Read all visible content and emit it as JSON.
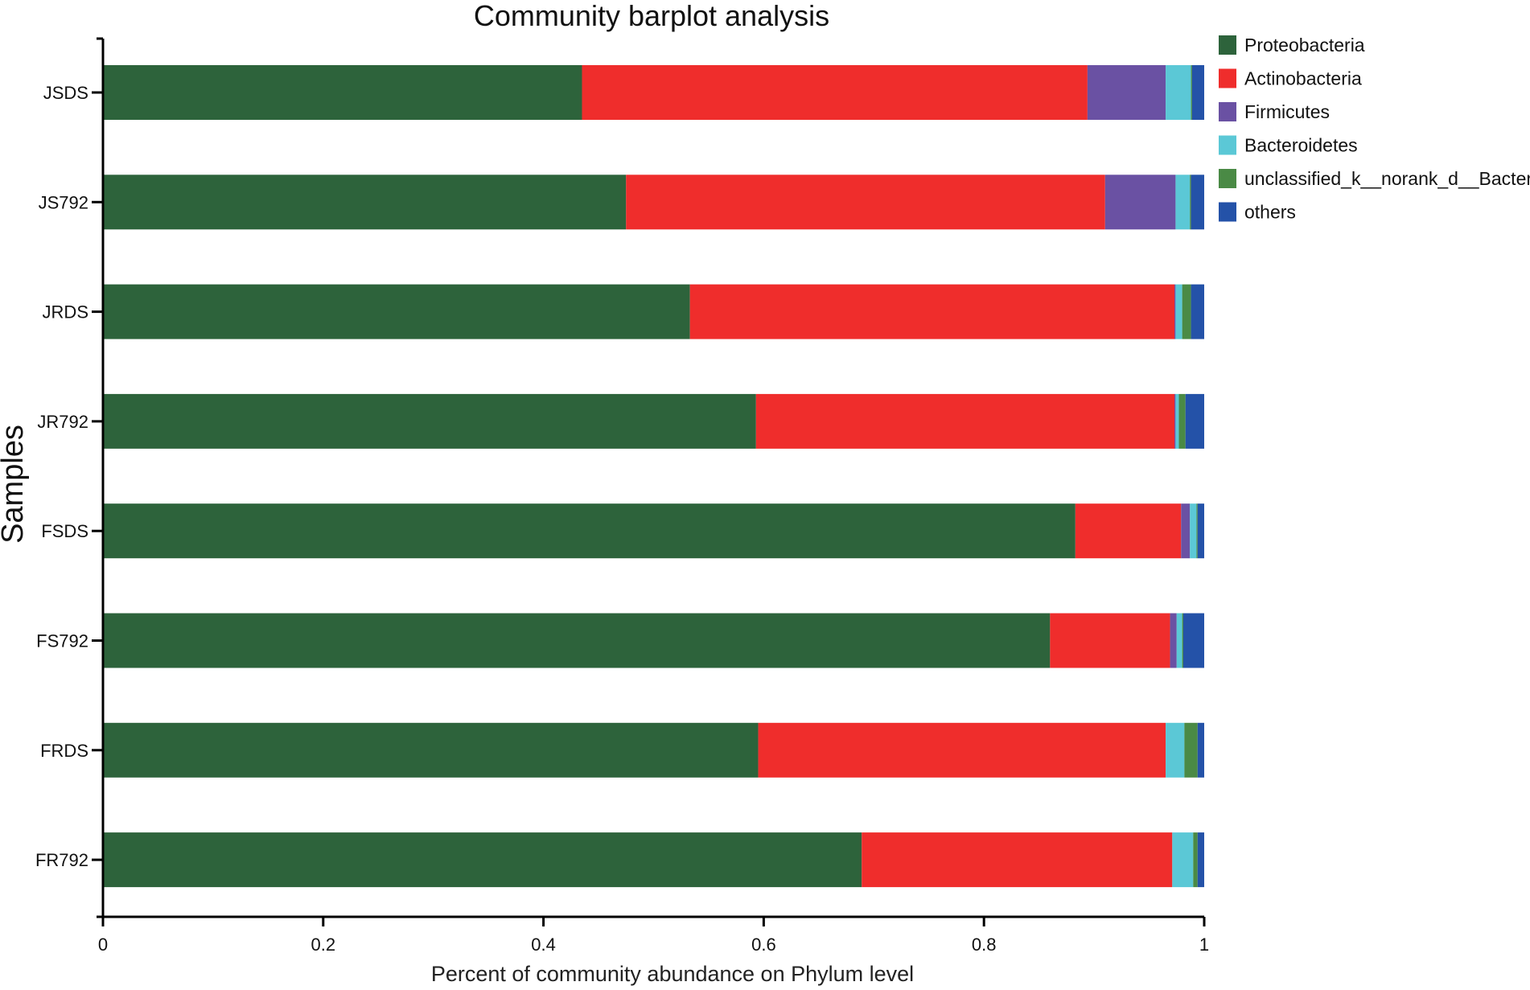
{
  "chart_data": {
    "type": "bar",
    "orientation": "horizontal",
    "stacked": true,
    "title": "Community barplot analysis",
    "xlabel": "Percent of community abundance on Phylum level",
    "ylabel": "Samples",
    "xlim": [
      0,
      1
    ],
    "xticks": [
      "0",
      "0.2",
      "0.4",
      "0.6",
      "0.8",
      "1"
    ],
    "xtick_values": [
      0,
      0.2,
      0.4,
      0.6,
      0.8,
      1
    ],
    "legend_position": "top-right",
    "categories": [
      "JSDS",
      "JS792",
      "JRDS",
      "JR792",
      "FSDS",
      "FS792",
      "FRDS",
      "FR792"
    ],
    "series": [
      {
        "name": "Proteobacteria",
        "color": "#2d633b",
        "values": [
          0.435,
          0.475,
          0.533,
          0.593,
          0.883,
          0.86,
          0.595,
          0.689
        ]
      },
      {
        "name": "Actinobacteria",
        "color": "#ef2d2c",
        "values": [
          0.459,
          0.435,
          0.44,
          0.38,
          0.096,
          0.109,
          0.37,
          0.282
        ]
      },
      {
        "name": "Firmicutes",
        "color": "#6a51a3",
        "values": [
          0.071,
          0.064,
          0.001,
          0.001,
          0.008,
          0.006,
          0.0,
          0.0
        ]
      },
      {
        "name": "Bacteroidetes",
        "color": "#5bc8d6",
        "values": [
          0.023,
          0.013,
          0.006,
          0.003,
          0.006,
          0.005,
          0.017,
          0.019
        ]
      },
      {
        "name": "unclassified_k__norank_d__Bacteria",
        "color": "#4a8a45",
        "values": [
          0.001,
          0.001,
          0.008,
          0.006,
          0.001,
          0.001,
          0.012,
          0.004
        ]
      },
      {
        "name": "others",
        "color": "#2452a8",
        "values": [
          0.011,
          0.012,
          0.012,
          0.017,
          0.006,
          0.019,
          0.006,
          0.006
        ]
      }
    ]
  }
}
